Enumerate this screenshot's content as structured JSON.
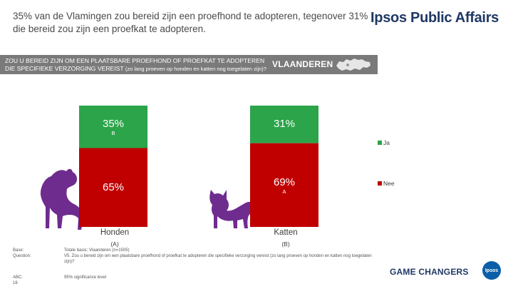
{
  "headline": "35% van de Vlamingen zou bereid zijn een proefhond te adopteren, tegenover 31% die bereid zou zijn een proefkat te adopteren.",
  "brand": "Ipsos Public Affairs",
  "question": {
    "text": "ZOU U BEREID ZIJN OM EEN PLAATSBARE PROEFHOND OF PROEFKAT TE ADOPTEREN DIE SPECIFIEKE VERZORGING VEREIST",
    "note": "(zo lang proeven op honden en katten nog toegelaten zijn)?",
    "region": "VLAANDEREN"
  },
  "colors": {
    "ja": "#2ca44a",
    "nee": "#c00000",
    "band": "#7a7a7a",
    "animal": "#6f2c8f"
  },
  "chart_data": {
    "type": "bar",
    "stacked": true,
    "categories": [
      "Honden",
      "Katten"
    ],
    "category_letters": [
      "(A)",
      "(B)"
    ],
    "series": [
      {
        "name": "Ja",
        "values": [
          35,
          31
        ],
        "labels": [
          "35%",
          "31%"
        ],
        "sig": [
          "B",
          ""
        ]
      },
      {
        "name": "Nee",
        "values": [
          65,
          69
        ],
        "labels": [
          "65%",
          "69%"
        ],
        "sig": [
          "",
          "A"
        ]
      }
    ],
    "ylim": [
      0,
      100
    ],
    "legend": [
      "Ja",
      "Nee"
    ]
  },
  "footer": {
    "base_label": "Base:",
    "base_text": "Totale basis: Vlaanderen (n=1505)",
    "question_label": "Question:",
    "question_text": "V5. Zou u bereid zijn om een plaatsbare proefhond of proefkat te adopteren die specifieke verzorging vereist (zo lang proeven op honden en katten nog toegelaten zijn)?",
    "abc_label": "ABC:",
    "abc_text": "95% significance level",
    "page_number": "16",
    "tagline": "GAME CHANGERS",
    "logo": "Ipsos"
  }
}
